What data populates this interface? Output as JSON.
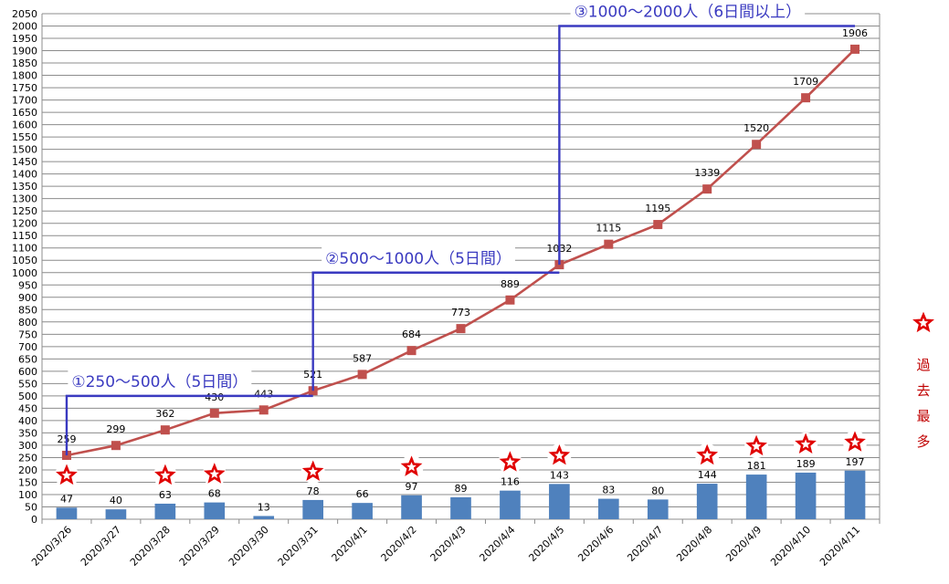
{
  "chart_data": {
    "type": "bar+line",
    "categories": [
      "2020/3/26",
      "2020/3/27",
      "2020/3/28",
      "2020/3/29",
      "2020/3/30",
      "2020/3/31",
      "2020/4/1",
      "2020/4/2",
      "2020/4/3",
      "2020/4/4",
      "2020/4/5",
      "2020/4/6",
      "2020/4/7",
      "2020/4/8",
      "2020/4/9",
      "2020/4/10",
      "2020/4/11"
    ],
    "bar_values": [
      47,
      40,
      63,
      68,
      13,
      78,
      66,
      97,
      89,
      116,
      143,
      83,
      80,
      144,
      181,
      189,
      197
    ],
    "line_values": [
      259,
      299,
      362,
      430,
      443,
      521,
      587,
      684,
      773,
      889,
      1032,
      1115,
      1195,
      1339,
      1520,
      1709,
      1906
    ],
    "record_flags": [
      true,
      false,
      true,
      true,
      false,
      true,
      false,
      true,
      false,
      true,
      true,
      false,
      false,
      true,
      true,
      true,
      true
    ],
    "ylim": [
      0,
      2050
    ],
    "ytick_step": 50,
    "grid": true,
    "colors": {
      "bar": "#4f81bd",
      "line": "#c0504d",
      "annotation": "#3a3ac0",
      "star": "#e00000"
    },
    "annotations": [
      {
        "text": "①250〜500人（5日間）",
        "from_index": 0,
        "to_index": 5,
        "level": 500
      },
      {
        "text": "②500〜1000人（5日間）",
        "from_index": 5,
        "to_index": 10,
        "level": 1000
      },
      {
        "text": "③1000〜2000人（6日間以上）",
        "from_index": 10,
        "to_index": 16,
        "level": 2000
      }
    ],
    "legend": {
      "icon": "star-icon",
      "text": "過去最多",
      "position": "right"
    }
  }
}
